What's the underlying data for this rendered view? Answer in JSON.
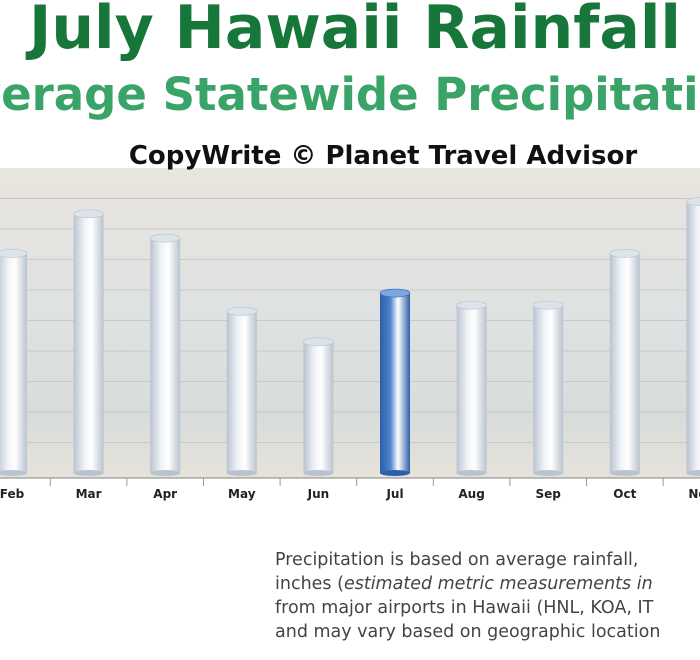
{
  "chart_data": {
    "type": "bar",
    "title": "July Hawaii Rainfall",
    "subtitle": "Average Statewide Precipitation",
    "annotation": "CopyWrite © Planet Travel Advisor",
    "categories": [
      "Feb",
      "Mar",
      "Apr",
      "May",
      "Jun",
      "Jul",
      "Aug",
      "Sep",
      "Oct",
      "Nov"
    ],
    "values": [
      7.2,
      8.5,
      7.7,
      5.3,
      4.3,
      5.9,
      5.5,
      5.5,
      7.2,
      8.9
    ],
    "colors": [
      "#eef2f7",
      "#eef2f7",
      "#eef2f7",
      "#eef2f7",
      "#eef2f7",
      "#4d84cc",
      "#eef2f7",
      "#eef2f7",
      "#eef2f7",
      "#eef2f7"
    ],
    "ylim": [
      0,
      10
    ],
    "yticks": [
      1,
      2,
      3,
      4,
      5,
      6,
      7,
      8,
      9,
      10
    ],
    "grid": true
  },
  "note": {
    "lines": [
      [
        "Precipitation is based on average rainfall,"
      ],
      [
        "inches (",
        "estimated metric measurements in"
      ],
      [
        "from major airports in Hawaii (HNL, KOA, IT"
      ],
      [
        "and may vary based on geographic location"
      ]
    ]
  }
}
